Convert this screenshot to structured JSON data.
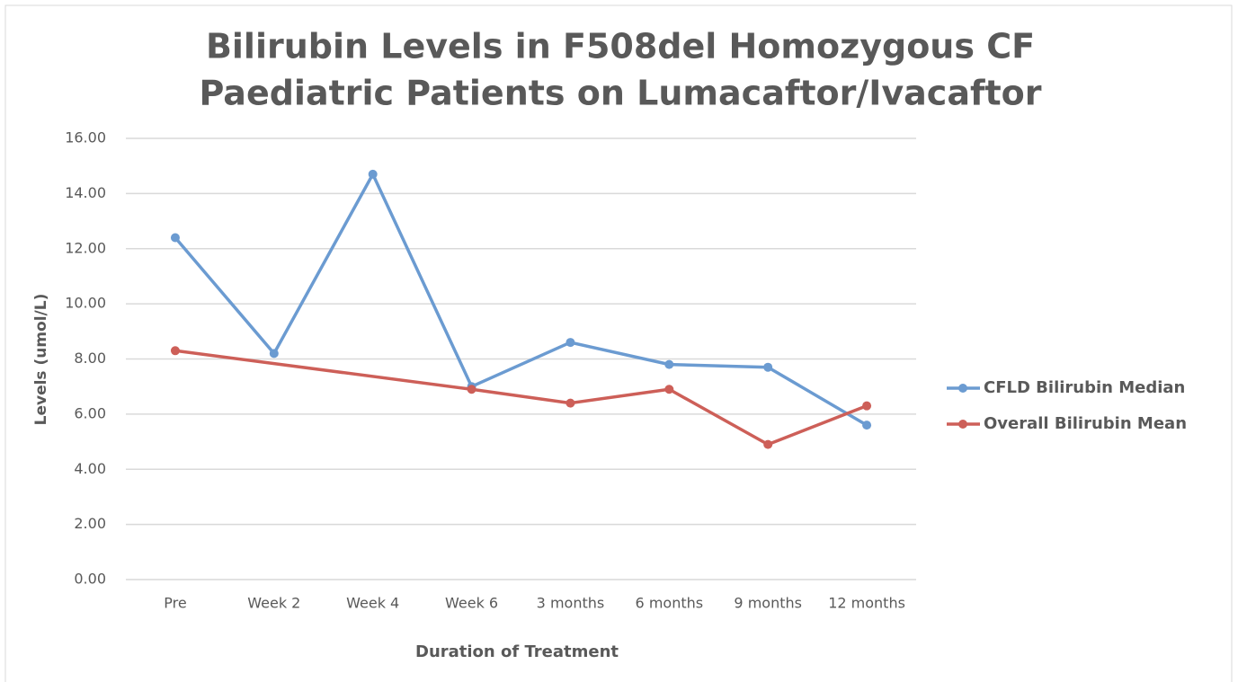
{
  "chart_data": {
    "type": "line",
    "title": [
      "Bilirubin Levels in F508del Homozygous CF",
      "Paediatric Patients on Lumacaftor/Ivacaftor"
    ],
    "x_label": "Duration of Treatment",
    "y_label": "Levels (umol/L)",
    "categories": [
      "Pre",
      "Week 2",
      "Week 4",
      "Week 6",
      "3 months",
      "6 months",
      "9 months",
      "12 months"
    ],
    "series": [
      {
        "name": "CFLD Bilirubin Median",
        "color": "#6b9bd1",
        "values": [
          12.4,
          8.2,
          14.7,
          7.0,
          8.6,
          7.8,
          7.7,
          5.6
        ]
      },
      {
        "name": "Overall Bilirubin Mean",
        "color": "#cd5f58",
        "values": [
          8.3,
          null,
          null,
          6.9,
          6.4,
          6.9,
          4.9,
          6.3
        ]
      }
    ],
    "span_gaps": true,
    "ylim": [
      0,
      16
    ],
    "yticks": [
      {
        "value": 0,
        "label": "0.00"
      },
      {
        "value": 2,
        "label": "2.00"
      },
      {
        "value": 4,
        "label": "4.00"
      },
      {
        "value": 6,
        "label": "6.00"
      },
      {
        "value": 8,
        "label": "8.00"
      },
      {
        "value": 10,
        "label": "10.00"
      },
      {
        "value": 12,
        "label": "12.00"
      },
      {
        "value": 14,
        "label": "14.00"
      },
      {
        "value": 16,
        "label": "16.00"
      }
    ],
    "grid": true,
    "legend": "right"
  }
}
